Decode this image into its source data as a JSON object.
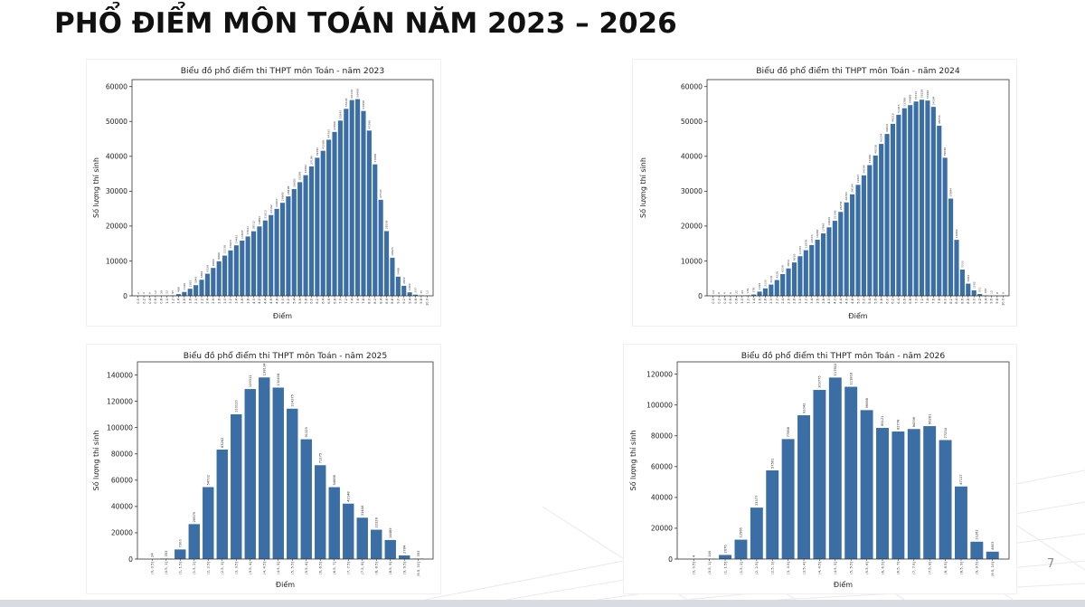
{
  "slide": {
    "title": "PHỔ ĐIỂM MÔN TOÁN NĂM 2023 – 2026",
    "page_number": "7"
  },
  "chart_data": [
    {
      "type": "bar",
      "title": "Biểu đồ phổ điểm thi THPT môn Toán - năm 2023",
      "xlabel": "Điểm",
      "ylabel": "Số lượng thí sinh",
      "ylim": [
        0,
        62000
      ],
      "yticks": [
        0,
        10000,
        20000,
        30000,
        40000,
        50000,
        60000
      ],
      "color": "#3a6ea5",
      "categories": [
        "0.0",
        "0.2",
        "0.4",
        "0.6",
        "0.8",
        "1.0",
        "1.2",
        "1.4",
        "1.6",
        "1.8",
        "2.0",
        "2.2",
        "2.4",
        "2.6",
        "2.8",
        "3.0",
        "3.2",
        "3.4",
        "3.6",
        "3.8",
        "4.0",
        "4.2",
        "4.4",
        "4.6",
        "4.8",
        "5.0",
        "5.2",
        "5.4",
        "5.6",
        "5.8",
        "6.0",
        "6.2",
        "6.4",
        "6.6",
        "6.8",
        "7.0",
        "7.2",
        "7.4",
        "7.6",
        "7.8",
        "8.0",
        "8.2",
        "8.4",
        "8.6",
        "8.8",
        "9.0",
        "9.2",
        "9.4",
        "9.6",
        "9.8",
        "10.0"
      ],
      "values": [
        2,
        4,
        6,
        12,
        30,
        52,
        95,
        488,
        1109,
        2025,
        3046,
        4600,
        6339,
        8000,
        9899,
        11538,
        13024,
        14481,
        15835,
        17021,
        18512,
        19895,
        21612,
        23162,
        24937,
        26669,
        28498,
        30603,
        32589,
        34602,
        37109,
        39595,
        41589,
        44765,
        47000,
        50245,
        53618,
        56130,
        56400,
        53008,
        47390,
        37698,
        27537,
        18558,
        10923,
        5498,
        2872,
        1000,
        337,
        75,
        12
      ]
    },
    {
      "type": "bar",
      "title": "Biểu đồ phổ điểm thi THPT môn Toán - năm 2024",
      "xlabel": "Điểm",
      "ylabel": "Số lượng thí sinh",
      "ylim": [
        0,
        62000
      ],
      "yticks": [
        0,
        10000,
        20000,
        30000,
        40000,
        50000,
        60000
      ],
      "color": "#3a6ea5",
      "categories": [
        "0.0",
        "0.2",
        "0.4",
        "0.6",
        "0.8",
        "1.0",
        "1.2",
        "1.4",
        "1.6",
        "1.8",
        "2.0",
        "2.2",
        "2.4",
        "2.6",
        "2.8",
        "3.0",
        "3.2",
        "3.4",
        "3.6",
        "3.8",
        "4.0",
        "4.2",
        "4.4",
        "4.6",
        "4.8",
        "5.0",
        "5.2",
        "5.4",
        "5.6",
        "5.8",
        "6.0",
        "6.2",
        "6.4",
        "6.6",
        "6.8",
        "7.0",
        "7.2",
        "7.4",
        "7.6",
        "7.8",
        "8.0",
        "8.2",
        "8.4",
        "8.6",
        "8.8",
        "9.0",
        "9.2",
        "9.4",
        "9.6",
        "9.8",
        "10.0"
      ],
      "values": [
        14,
        0,
        4,
        6,
        22,
        64,
        139,
        378,
        1196,
        2135,
        3218,
        4529,
        6239,
        7854,
        9565,
        11355,
        13079,
        14553,
        16087,
        17895,
        19640,
        21506,
        24058,
        26793,
        29104,
        31825,
        34544,
        37480,
        40238,
        43554,
        46401,
        49316,
        51915,
        53789,
        54689,
        55715,
        56229,
        55993,
        54184,
        48756,
        39590,
        27884,
        16049,
        7533,
        3494,
        1562,
        511,
        100,
        12,
        0,
        0
      ]
    },
    {
      "type": "bar",
      "title": "Biểu đồ phổ điểm thi THPT môn Toán - năm 2025",
      "xlabel": "Điểm",
      "ylabel": "Số lượng thí sinh",
      "ylim": [
        0,
        150000
      ],
      "yticks": [
        0,
        20000,
        40000,
        60000,
        80000,
        100000,
        120000,
        140000
      ],
      "color": "#3a6ea5",
      "categories": [
        "(0, 0.5]",
        "(0.5, 1]",
        "(1, 1.5]",
        "(1.5, 2]",
        "(2, 2.5]",
        "(2.5, 3]",
        "(3, 3.5]",
        "(3.5, 4]",
        "(4, 4.5]",
        "(4.5, 5]",
        "(5, 5.5]",
        "(5.5, 6]",
        "(6, 6.5]",
        "(6.5, 7]",
        "(7, 7.5]",
        "(7.5, 8]",
        "(8, 8.5]",
        "(8.5, 9]",
        "(9, 9.5]",
        "(9.5, 10]"
      ],
      "values": [
        24,
        353,
        7300,
        26579,
        54732,
        83262,
        110110,
        129311,
        138134,
        130408,
        114375,
        91129,
        71375,
        54688,
        42148,
        31446,
        22328,
        14489,
        2784,
        353
      ]
    },
    {
      "type": "bar",
      "title": "Biểu đồ phổ điểm thi THPT môn Toán - năm 2026",
      "xlabel": "Điểm",
      "ylabel": "Số lượng thí sinh",
      "ylim": [
        0,
        128000
      ],
      "yticks": [
        0,
        20000,
        40000,
        60000,
        80000,
        100000,
        120000
      ],
      "color": "#3a6ea5",
      "categories": [
        "(0, 0.5]",
        "(0.5, 1]",
        "(1, 1.5]",
        "(1.5, 2]",
        "(2, 2.5]",
        "(2.5, 3]",
        "(3, 3.5]",
        "(3.5, 4]",
        "(4, 4.5]",
        "(4.5, 5]",
        "(5, 5.5]",
        "(5.5, 6]",
        "(6, 6.5]",
        "(6.5, 7]",
        "(7, 7.5]",
        "(7.5, 8]",
        "(8, 8.5]",
        "(8.5, 9]",
        "(9, 9.5]",
        "(9.5, 10]"
      ],
      "values": [
        4,
        149,
        2676,
        12566,
        33377,
        57561,
        77868,
        93342,
        109775,
        117802,
        111818,
        96668,
        85121,
        82778,
        84396,
        86281,
        77234,
        47117,
        11262,
        4803
      ]
    }
  ]
}
